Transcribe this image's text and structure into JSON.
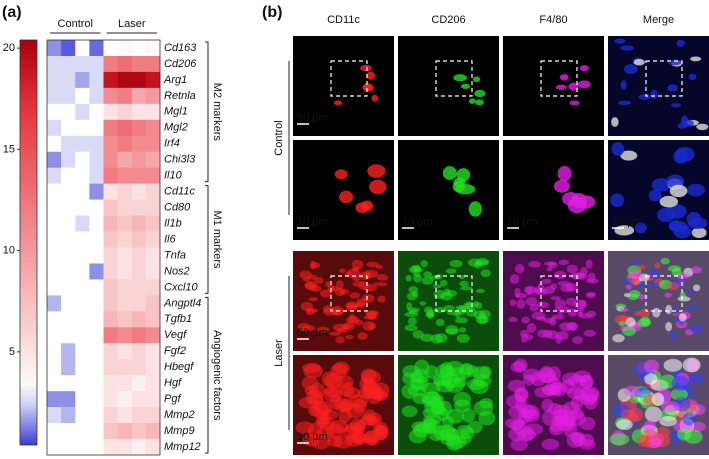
{
  "chart_data": {
    "type": "heatmap",
    "panel_label": "(a)",
    "rows": [
      "Cd163",
      "Cd206",
      "Arg1",
      "Retnla",
      "Mgl1",
      "Mgl2",
      "Irf4",
      "Chi3l3",
      "Il10",
      "Cd11c",
      "Cd80",
      "Il1b",
      "Il6",
      "Tnfa",
      "Nos2",
      "Cxcl10",
      "Angptl4",
      "Tgfb1",
      "Vegf",
      "Fgf2",
      "Hbegf",
      "Hgf",
      "Pgf",
      "Mmp2",
      "Mmp9",
      "Mmp12"
    ],
    "column_groups": [
      {
        "name": "Control",
        "size": 4
      },
      {
        "name": "Laser",
        "size": 4
      }
    ],
    "row_groups": [
      {
        "name": "M2 markers",
        "size": 9
      },
      {
        "name": "M1 markers",
        "size": 7
      },
      {
        "name": "Angiogenic factors",
        "size": 10
      }
    ],
    "values": [
      [
        1.5,
        0.8,
        3,
        1,
        3,
        3.5,
        3,
        3.5
      ],
      [
        2.5,
        2.5,
        2.5,
        2.5,
        12,
        13,
        12,
        12
      ],
      [
        2.5,
        2.5,
        1.8,
        2.5,
        19,
        20,
        20,
        19
      ],
      [
        2.5,
        2.5,
        3,
        2.5,
        11,
        12,
        9,
        10
      ],
      [
        3,
        3,
        2.5,
        3,
        5,
        6,
        5,
        5
      ],
      [
        2.5,
        3,
        3,
        3,
        12,
        13,
        12,
        11
      ],
      [
        3,
        2.5,
        2.5,
        2.5,
        11,
        12,
        11,
        11
      ],
      [
        1.5,
        2.5,
        3,
        2.5,
        11,
        9,
        10,
        9
      ],
      [
        2.5,
        3,
        3,
        2.5,
        12,
        11,
        11,
        11
      ],
      [
        3,
        3,
        3,
        1.5,
        5,
        6,
        5,
        6
      ],
      [
        3,
        3,
        3,
        3,
        7,
        6,
        6,
        6
      ],
      [
        3,
        3,
        2.5,
        3,
        8,
        7,
        8,
        7
      ],
      [
        3,
        3,
        3,
        3,
        7,
        6,
        7,
        6
      ],
      [
        3,
        3,
        3,
        3,
        6,
        5,
        6,
        5
      ],
      [
        3,
        3,
        3,
        1.5,
        6,
        5,
        6,
        5
      ],
      [
        3,
        3,
        3,
        3,
        7,
        6,
        6,
        6
      ],
      [
        2,
        3,
        3,
        3,
        7,
        6,
        6,
        7
      ],
      [
        3,
        3,
        3,
        3,
        8,
        7,
        8,
        7
      ],
      [
        3,
        3,
        3,
        3,
        12,
        11,
        12,
        11
      ],
      [
        3,
        2,
        3,
        3,
        6,
        5,
        6,
        5
      ],
      [
        3,
        2,
        3,
        3,
        6,
        6,
        6,
        5
      ],
      [
        3,
        3,
        3,
        3,
        5,
        5,
        4,
        5
      ],
      [
        1.5,
        1.5,
        3,
        3,
        5,
        4,
        5,
        5
      ],
      [
        2.5,
        2,
        3,
        3,
        6,
        5,
        6,
        6
      ],
      [
        3,
        3,
        3,
        3,
        7,
        8,
        7,
        8
      ],
      [
        3,
        3,
        3,
        3,
        5,
        5,
        4,
        5
      ]
    ],
    "zlim": [
      0.4,
      20.4
    ],
    "zticks": [
      5,
      10,
      15,
      20
    ],
    "colors": {
      "low": "#3c3cd6",
      "mid": "#ffffff",
      "high": "#e8333c",
      "max": "#a80010"
    }
  },
  "panel_b": {
    "label": "(b)",
    "columns": [
      {
        "name": "CD11c",
        "color": "#e8303a"
      },
      {
        "name": "CD206",
        "color": "#2fc02f"
      },
      {
        "name": "F4/80",
        "color": "#d030d0"
      },
      {
        "name": "Merge",
        "color": "#f0902a"
      }
    ],
    "rows": [
      "Control",
      "Laser"
    ],
    "scale_bars": {
      "overview": "50 µm",
      "zoom": "10 µm"
    }
  }
}
